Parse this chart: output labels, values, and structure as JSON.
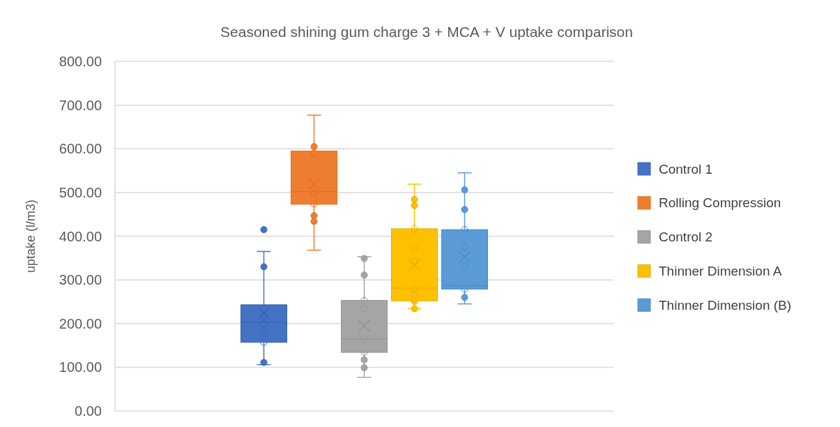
{
  "chart_data": {
    "type": "box",
    "title": "Seasoned shining gum charge 3 + MCA + V uptake comparison",
    "ylabel": "uptake (l/m3)",
    "categories": [
      null
    ],
    "series": [
      {
        "name": "Control 1",
        "color": "#4472c4",
        "boxes": [
          {
            "low": 106,
            "q1": 157,
            "median": 203,
            "q3": 243,
            "high": 365,
            "mean": 224,
            "outliers": [
              111,
              157,
              185,
              200,
              219,
              233,
              330,
              415
            ]
          }
        ]
      },
      {
        "name": "Rolling Compression",
        "color": "#ed7d31",
        "boxes": [
          {
            "low": 368,
            "q1": 473,
            "median": 502,
            "q3": 595,
            "high": 677,
            "mean": 519,
            "outliers": [
              434,
              447,
              474,
              498,
              590,
              605
            ]
          }
        ]
      },
      {
        "name": "Control 2",
        "color": "#a5a5a5",
        "boxes": [
          {
            "low": 77,
            "q1": 134,
            "median": 165,
            "q3": 253,
            "high": 353,
            "mean": 195,
            "outliers": [
              99,
              117,
              134,
              165,
              234,
              253,
              311,
              349
            ]
          }
        ]
      },
      {
        "name": "Thinner Dimension A",
        "color": "#ffc000",
        "boxes": [
          {
            "low": 234,
            "q1": 252,
            "median": 281,
            "q3": 417,
            "high": 519,
            "mean": 334,
            "outliers": [
              234,
              251,
              265,
              279,
              341,
              372,
              417,
              470,
              484
            ]
          }
        ]
      },
      {
        "name": "Thinner Dimension (B)",
        "color": "#5b9bd5",
        "boxes": [
          {
            "low": 245,
            "q1": 279,
            "median": 287,
            "q3": 415,
            "high": 545,
            "mean": 352,
            "outliers": [
              260,
              279,
              332,
              375,
              415,
              461,
              506
            ]
          }
        ]
      }
    ],
    "ylim": [
      0,
      800
    ],
    "yticks": [
      {
        "value": 0,
        "label": "0.00"
      },
      {
        "value": 100,
        "label": "100.00"
      },
      {
        "value": 200,
        "label": "200.00"
      },
      {
        "value": 300,
        "label": "300.00"
      },
      {
        "value": 400,
        "label": "400.00"
      },
      {
        "value": 500,
        "label": "500.00"
      },
      {
        "value": 600,
        "label": "600.00"
      },
      {
        "value": 700,
        "label": "700.00"
      },
      {
        "value": 800,
        "label": "800.00"
      }
    ],
    "grid": "y",
    "legend": "right",
    "marker": "circle"
  }
}
